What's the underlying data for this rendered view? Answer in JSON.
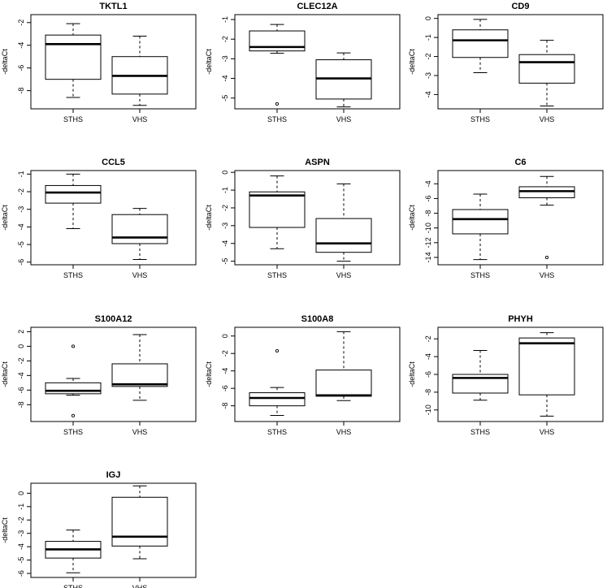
{
  "chart_data": [
    {
      "type": "box",
      "title": "TKTL1",
      "ylabel": "-deltaCt",
      "categories": [
        "STHS",
        "VHS"
      ],
      "yticks": [
        -2,
        -4,
        -6,
        -8
      ],
      "ylim": [
        -9.6,
        -1.3
      ],
      "boxes": [
        {
          "min": -8.6,
          "q1": -7.0,
          "median": -3.9,
          "q3": -3.1,
          "max": -2.1,
          "outliers": []
        },
        {
          "min": -9.3,
          "q1": -8.3,
          "median": -6.7,
          "q3": -5.0,
          "max": -3.2,
          "outliers": []
        }
      ]
    },
    {
      "type": "box",
      "title": "CLEC12A",
      "ylabel": "-deltaCt",
      "categories": [
        "STHS",
        "VHS"
      ],
      "yticks": [
        -1,
        -2,
        -3,
        -4,
        -5
      ],
      "ylim": [
        -5.55,
        -0.75
      ],
      "boxes": [
        {
          "min": -2.72,
          "q1": -2.6,
          "median": -2.4,
          "q3": -1.58,
          "max": -1.25,
          "outliers": [
            -5.3
          ]
        },
        {
          "min": -5.45,
          "q1": -5.05,
          "median": -4.0,
          "q3": -3.05,
          "max": -2.7,
          "outliers": []
        }
      ]
    },
    {
      "type": "box",
      "title": "CD9",
      "ylabel": "-deltaCt",
      "categories": [
        "STHS",
        "VHS"
      ],
      "yticks": [
        0,
        -1,
        -2,
        -3,
        -4
      ],
      "ylim": [
        -4.75,
        0.2
      ],
      "boxes": [
        {
          "min": -2.85,
          "q1": -2.05,
          "median": -1.15,
          "q3": -0.6,
          "max": -0.05,
          "outliers": []
        },
        {
          "min": -4.6,
          "q1": -3.4,
          "median": -2.3,
          "q3": -1.9,
          "max": -1.15,
          "outliers": []
        }
      ]
    },
    {
      "type": "box",
      "title": "CCL5",
      "ylabel": "-deltaCt",
      "categories": [
        "STHS",
        "VHS"
      ],
      "yticks": [
        -1,
        -2,
        -3,
        -4,
        -5,
        -6
      ],
      "ylim": [
        -6.15,
        -0.8
      ],
      "boxes": [
        {
          "min": -4.1,
          "q1": -2.65,
          "median": -2.05,
          "q3": -1.65,
          "max": -1.0,
          "outliers": []
        },
        {
          "min": -5.85,
          "q1": -4.95,
          "median": -4.6,
          "q3": -3.3,
          "max": -2.95,
          "outliers": []
        }
      ]
    },
    {
      "type": "box",
      "title": "ASPN",
      "ylabel": "-deltaCt",
      "categories": [
        "STHS",
        "VHS"
      ],
      "yticks": [
        0,
        -1,
        -2,
        -3,
        -4,
        -5
      ],
      "ylim": [
        -5.2,
        0.1
      ],
      "boxes": [
        {
          "min": -4.3,
          "q1": -3.1,
          "median": -1.3,
          "q3": -1.1,
          "max": -0.2,
          "outliers": []
        },
        {
          "min": -5.0,
          "q1": -4.5,
          "median": -4.0,
          "q3": -2.6,
          "max": -0.65,
          "outliers": []
        }
      ]
    },
    {
      "type": "box",
      "title": "C6",
      "ylabel": "-deltaCt",
      "categories": [
        "STHS",
        "VHS"
      ],
      "yticks": [
        -4,
        -6,
        -8,
        -10,
        -12,
        -14
      ],
      "ylim": [
        -15,
        -2.2
      ],
      "boxes": [
        {
          "min": -14.3,
          "q1": -10.8,
          "median": -8.8,
          "q3": -7.5,
          "max": -5.4,
          "outliers": []
        },
        {
          "min": -6.9,
          "q1": -5.9,
          "median": -5.0,
          "q3": -4.4,
          "max": -3.0,
          "outliers": [
            -14.0
          ]
        }
      ]
    },
    {
      "type": "box",
      "title": "S100A12",
      "ylabel": "-deltaCt",
      "categories": [
        "STHS",
        "VHS"
      ],
      "yticks": [
        2,
        0,
        -2,
        -4,
        -6,
        -8
      ],
      "ylim": [
        -10.3,
        2.6
      ],
      "boxes": [
        {
          "min": -6.7,
          "q1": -6.5,
          "median": -6.1,
          "q3": -5.0,
          "max": -4.4,
          "outliers": [
            0.0,
            -9.5
          ]
        },
        {
          "min": -7.4,
          "q1": -5.5,
          "median": -5.2,
          "q3": -2.4,
          "max": 1.6,
          "outliers": []
        }
      ]
    },
    {
      "type": "box",
      "title": "S100A8",
      "ylabel": "-deltaCt",
      "categories": [
        "STHS",
        "VHS"
      ],
      "yticks": [
        0,
        -2,
        -4,
        -6,
        -8
      ],
      "ylim": [
        -9.8,
        1.0
      ],
      "boxes": [
        {
          "min": -9.1,
          "q1": -8.0,
          "median": -7.1,
          "q3": -6.5,
          "max": -5.9,
          "outliers": [
            -1.7
          ]
        },
        {
          "min": -7.4,
          "q1": -6.9,
          "median": -6.8,
          "q3": -3.9,
          "max": 0.5,
          "outliers": []
        }
      ]
    },
    {
      "type": "box",
      "title": "PHYH",
      "ylabel": "-deltaCt",
      "categories": [
        "STHS",
        "VHS"
      ],
      "yticks": [
        -2,
        -4,
        -6,
        -8,
        -10
      ],
      "ylim": [
        -11.3,
        -0.7
      ],
      "boxes": [
        {
          "min": -8.9,
          "q1": -8.1,
          "median": -6.4,
          "q3": -6.0,
          "max": -3.3,
          "outliers": []
        },
        {
          "min": -10.7,
          "q1": -8.3,
          "median": -2.5,
          "q3": -1.9,
          "max": -1.3,
          "outliers": []
        }
      ]
    },
    {
      "type": "box",
      "title": "IGJ",
      "ylabel": "-deltaCt",
      "categories": [
        "STHS",
        "VHS"
      ],
      "yticks": [
        0,
        -1,
        -2,
        -3,
        -4,
        -5,
        -6
      ],
      "ylim": [
        -6.3,
        0.75
      ],
      "boxes": [
        {
          "min": -5.95,
          "q1": -4.85,
          "median": -4.2,
          "q3": -3.6,
          "max": -2.75,
          "outliers": []
        },
        {
          "min": -4.9,
          "q1": -3.95,
          "median": -3.25,
          "q3": -0.3,
          "max": 0.55,
          "outliers": []
        }
      ]
    }
  ]
}
